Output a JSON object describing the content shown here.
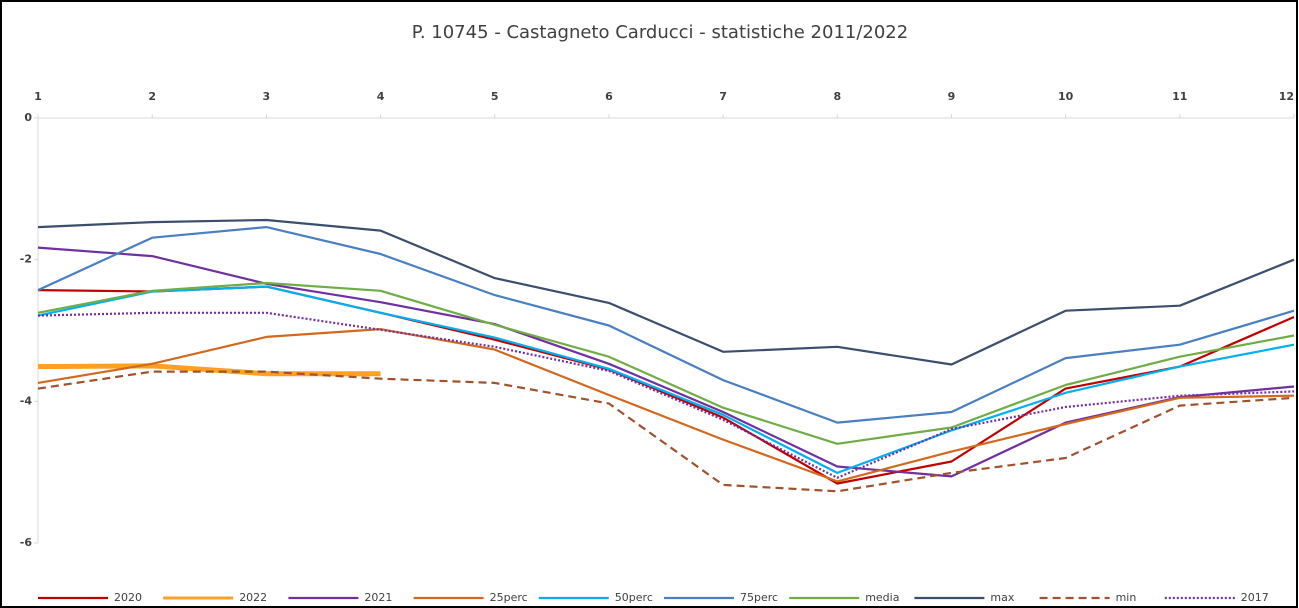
{
  "chart_data": {
    "type": "line",
    "title": "P. 10745 - Castagneto Carducci - statistiche 2011/2022",
    "x": [
      1,
      2,
      3,
      4,
      5,
      6,
      7,
      8,
      9,
      10,
      11,
      12
    ],
    "xlim": [
      1,
      12
    ],
    "xticks": [
      1,
      2,
      3,
      4,
      5,
      6,
      7,
      8,
      9,
      10,
      11,
      12
    ],
    "ylim": [
      -6,
      0
    ],
    "yticks": [
      0,
      -2,
      -4,
      -6
    ],
    "series": [
      {
        "name": "2020",
        "color": "#c00000",
        "line_style": "solid",
        "values": [
          -2.43,
          -2.45,
          -2.38,
          -2.75,
          -3.13,
          -3.55,
          -4.23,
          -5.16,
          -4.85,
          -3.82,
          -3.51,
          -2.81
        ]
      },
      {
        "name": "2022",
        "color": "#ffa020",
        "line_style": "thick",
        "values": [
          -3.51,
          -3.5,
          -3.61,
          -3.61,
          null,
          null,
          null,
          null,
          null,
          null,
          null,
          null
        ]
      },
      {
        "name": "2021",
        "color": "#7030a0",
        "line_style": "solid",
        "values": [
          -1.83,
          -1.95,
          -2.34,
          -2.6,
          -2.91,
          -3.47,
          -4.15,
          -4.92,
          -5.06,
          -4.3,
          -3.94,
          -3.79
        ]
      },
      {
        "name": "25perc",
        "color": "#d2691e",
        "line_style": "solid",
        "values": [
          -3.74,
          -3.47,
          -3.09,
          -2.98,
          -3.27,
          -3.91,
          -4.54,
          -5.13,
          -4.71,
          -4.32,
          -3.95,
          -3.92
        ]
      },
      {
        "name": "50perc",
        "color": "#00b0f0",
        "line_style": "solid",
        "values": [
          -2.79,
          -2.45,
          -2.38,
          -2.75,
          -3.1,
          -3.54,
          -4.19,
          -5.01,
          -4.41,
          -3.88,
          -3.51,
          -3.2
        ]
      },
      {
        "name": "75perc",
        "color": "#4a7fc1",
        "line_style": "solid",
        "values": [
          -2.43,
          -1.69,
          -1.54,
          -1.92,
          -2.5,
          -2.93,
          -3.7,
          -4.3,
          -4.15,
          -3.39,
          -3.2,
          -2.72
        ]
      },
      {
        "name": "media",
        "color": "#70ad47",
        "line_style": "solid",
        "values": [
          -2.75,
          -2.44,
          -2.33,
          -2.44,
          -2.92,
          -3.37,
          -4.09,
          -4.6,
          -4.37,
          -3.77,
          -3.37,
          -3.07
        ]
      },
      {
        "name": "max",
        "color": "#3b4e6e",
        "line_style": "solid",
        "values": [
          -1.54,
          -1.47,
          -1.44,
          -1.59,
          -2.26,
          -2.61,
          -3.3,
          -3.23,
          -3.48,
          -2.72,
          -2.65,
          -2.0
        ]
      },
      {
        "name": "min",
        "color": "#a0522d",
        "line_style": "dashed",
        "values": [
          -3.82,
          -3.58,
          -3.58,
          -3.68,
          -3.74,
          -4.03,
          -5.18,
          -5.27,
          -5.01,
          -4.8,
          -4.06,
          -3.95
        ]
      },
      {
        "name": "2017",
        "color": "#7030a0",
        "line_style": "dotted",
        "values": [
          -2.79,
          -2.75,
          -2.75,
          -2.99,
          -3.23,
          -3.57,
          -4.26,
          -5.08,
          -4.39,
          -4.08,
          -3.92,
          -3.86
        ]
      }
    ]
  }
}
